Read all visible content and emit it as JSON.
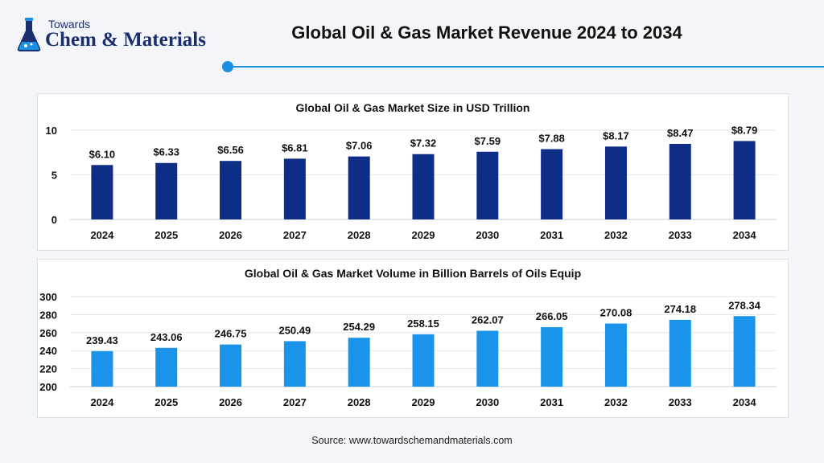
{
  "brand": {
    "top": "Towards",
    "main": "Chem & Materials"
  },
  "title": "Global Oil & Gas Market Revenue 2024 to 2034",
  "colors": {
    "accent": "#1b8fe0",
    "size_bars": "#0d2d87",
    "volume_bars": "#1a94eb",
    "brand": "#1b2f6e"
  },
  "source": "Source: www.towardschemandmaterials.com",
  "chart_data": [
    {
      "type": "bar",
      "title": "Global Oil & Gas Market Size in USD Trillion",
      "categories": [
        "2024",
        "2025",
        "2026",
        "2027",
        "2028",
        "2029",
        "2030",
        "2031",
        "2032",
        "2033",
        "2034"
      ],
      "values": [
        6.1,
        6.33,
        6.56,
        6.81,
        7.06,
        7.32,
        7.59,
        7.88,
        8.17,
        8.47,
        8.79
      ],
      "labels": [
        "$6.10",
        "$6.33",
        "$6.56",
        "$6.81",
        "$7.06",
        "$7.32",
        "$7.59",
        "$7.88",
        "$8.17",
        "$8.47",
        "$8.79"
      ],
      "yticks": [
        "0",
        "5",
        "10"
      ],
      "ylim": [
        0,
        10
      ],
      "xlabel": "",
      "ylabel": ""
    },
    {
      "type": "bar",
      "title": "Global Oil & Gas Market Volume in Billion Barrels of Oils Equip",
      "categories": [
        "2024",
        "2025",
        "2026",
        "2027",
        "2028",
        "2029",
        "2030",
        "2031",
        "2032",
        "2033",
        "2034"
      ],
      "values": [
        239.43,
        243.06,
        246.75,
        250.49,
        254.29,
        258.15,
        262.07,
        266.05,
        270.08,
        274.18,
        278.34
      ],
      "labels": [
        "239.43",
        "243.06",
        "246.75",
        "250.49",
        "254.29",
        "258.15",
        "262.07",
        "266.05",
        "270.08",
        "274.18",
        "278.34"
      ],
      "yticks": [
        "200",
        "220",
        "240",
        "260",
        "280",
        "300"
      ],
      "ylim": [
        200,
        300
      ],
      "xlabel": "",
      "ylabel": ""
    }
  ]
}
